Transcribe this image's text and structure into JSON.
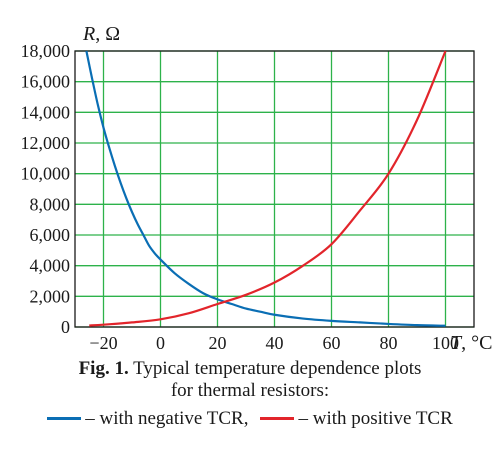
{
  "chart_data": {
    "type": "line",
    "xlabel_var": "T",
    "xlabel_unit": ", °C",
    "ylabel_var": "R",
    "ylabel_unit": ", Ω",
    "xlim": [
      -30,
      110
    ],
    "ylim": [
      0,
      18000
    ],
    "x_ticks": [
      -20,
      0,
      20,
      40,
      60,
      80,
      100
    ],
    "x_tick_labels": [
      "−20",
      "0",
      "20",
      "40",
      "60",
      "80",
      "100"
    ],
    "y_ticks": [
      0,
      2000,
      4000,
      6000,
      8000,
      10000,
      12000,
      14000,
      16000,
      18000
    ],
    "y_tick_labels": [
      "0",
      "2,000",
      "4,000",
      "6,000",
      "8,000",
      "10,000",
      "12,000",
      "14,000",
      "16,000",
      "18,000"
    ],
    "grid": true,
    "grid_color": "#2db24a",
    "series": [
      {
        "name": "with negative TCR",
        "color": "#0a6eb4",
        "x": [
          -26,
          -24,
          -22,
          -20,
          -18,
          -16,
          -14,
          -12,
          -10,
          -8,
          -6,
          -4,
          -2,
          0,
          5,
          10,
          15,
          20,
          25,
          30,
          35,
          40,
          50,
          60,
          70,
          80,
          90,
          100
        ],
        "y": [
          18000,
          16200,
          14500,
          13000,
          11700,
          10500,
          9400,
          8400,
          7500,
          6700,
          6000,
          5300,
          4800,
          4400,
          3500,
          2800,
          2200,
          1800,
          1500,
          1200,
          1000,
          800,
          550,
          400,
          300,
          200,
          120,
          80
        ]
      },
      {
        "name": "with positive TCR",
        "color": "#e2252b",
        "x": [
          -25,
          -20,
          -10,
          0,
          10,
          20,
          30,
          40,
          50,
          60,
          70,
          80,
          90,
          100
        ],
        "y": [
          100,
          150,
          300,
          500,
          900,
          1500,
          2100,
          2900,
          4000,
          5400,
          7600,
          10000,
          13500,
          18000
        ]
      }
    ]
  },
  "caption": {
    "fig_label": "Fig. 1.",
    "line1_text": " Typical temperature dependence plots",
    "line2_text": "for thermal resistors:"
  },
  "legend": {
    "items": [
      {
        "text": "– with negative TCR,",
        "color": "#0a6eb4"
      },
      {
        "text": "– with positive TCR",
        "color": "#e2252b"
      }
    ]
  }
}
